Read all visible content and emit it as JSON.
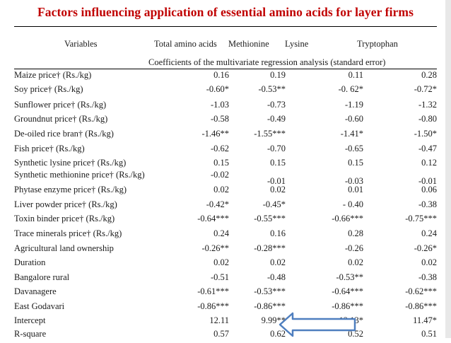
{
  "title": "Factors influencing application of essential amino acids for layer firms",
  "header": {
    "variables": "Variables",
    "total": "Total amino acids",
    "methionine": "Methionine",
    "lysine": "Lysine",
    "tryptophan": "Tryptophan"
  },
  "subheader": "Coefficients of the multivariate regression analysis (standard error)",
  "rows": [
    {
      "v": "Maize price† (Rs./kg)",
      "a": "0.16",
      "b": "0.19",
      "c": "0.11",
      "d": "0.28"
    },
    {
      "v": "Soy price† (Rs./kg)",
      "a": "-0.60*",
      "b": "-0.53**",
      "c": "-0. 62*",
      "d": "-0.72*"
    },
    {
      "v": "Sunflower price† (Rs./kg)",
      "a": "-1.03",
      "b": "-0.73",
      "c": "-1.19",
      "d": "-1.32"
    },
    {
      "v": "Groundnut price† (Rs./kg)",
      "a": "-0.58",
      "b": "-0.49",
      "c": "-0.60",
      "d": "-0.80"
    },
    {
      "v": "De-oiled rice bran† (Rs./kg)",
      "a": "-1.46**",
      "b": "-1.55***",
      "c": "-1.41*",
      "d": "-1.50*"
    },
    {
      "v": "Fish price† (Rs./kg)",
      "a": "-0.62",
      "b": "-0.70",
      "c": "-0.65",
      "d": "-0.47"
    },
    {
      "v": "Synthetic lysine price† (Rs./kg)",
      "a": "0.15",
      "b": "0.15",
      "c": "0.15",
      "d": "0.12"
    },
    {
      "v": "Synthetic methionine price† (Rs./kg)",
      "a": "-0.02",
      "b": "-0.01",
      "c": "-0.03",
      "d": "-0.01"
    },
    {
      "v": "Phytase enzyme price† (Rs./kg)",
      "a": "0.02",
      "b": "0.02",
      "c": "0.01",
      "d": "0.06"
    },
    {
      "v": "Liver powder price† (Rs./kg)",
      "a": "-0.42*",
      "b": "-0.45*",
      "c": "- 0.40",
      "d": "-0.38"
    },
    {
      "v": "Toxin binder price† (Rs./kg)",
      "a": "-0.64***",
      "b": "-0.55***",
      "c": "-0.66***",
      "d": "-0.75***"
    },
    {
      "v": "Trace minerals price† (Rs./kg)",
      "a": "0.24",
      "b": "0.16",
      "c": "0.28",
      "d": "0.24"
    },
    {
      "v": "Agricultural land ownership",
      "a": "-0.26**",
      "b": "-0.28***",
      "c": "-0.26",
      "d": "-0.26*"
    },
    {
      "v": "Duration",
      "a": "0.02",
      "b": "0.02",
      "c": "0.02",
      "d": "0.02"
    },
    {
      "v": "Bangalore rural",
      "a": "-0.51",
      "b": "-0.48",
      "c": "-0.53**",
      "d": "-0.38"
    },
    {
      "v": "Davanagere",
      "a": "-0.61***",
      "b": "-0.53***",
      "c": "-0.64***",
      "d": "-0.62***"
    },
    {
      "v": "East Godavari",
      "a": "-0.86***",
      "b": "-0.86***",
      "c": "-0.86***",
      "d": "-0.86***"
    },
    {
      "v": "Intercept",
      "a": "12.11",
      "b": "9.99**",
      "c": "12.13*",
      "d": "11.47*"
    },
    {
      "v": "R-square",
      "a": "0.57",
      "b": "0.62",
      "c": "0.52",
      "d": "0.51"
    }
  ],
  "colors": {
    "title": "#c00000",
    "arrow": "#4f7fbf"
  }
}
